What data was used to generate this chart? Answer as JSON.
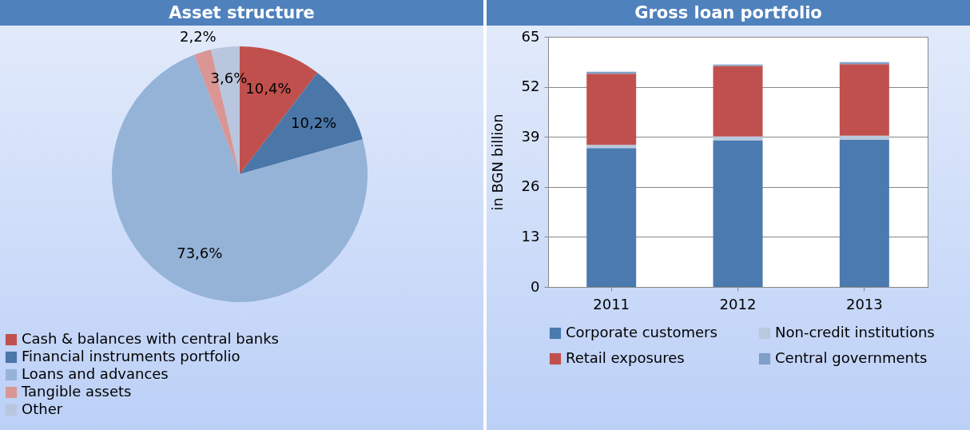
{
  "chart_data": [
    {
      "type": "pie",
      "title": "Asset structure",
      "categories": [
        "Cash & balances with central banks",
        "Financial instruments portfolio",
        "Loans and advances",
        "Tangible assets",
        "Other"
      ],
      "values": [
        10.4,
        10.2,
        73.6,
        2.2,
        3.6
      ],
      "value_labels": [
        "10,4%",
        "10,2%",
        "73,6%",
        "2,2%",
        "3,6%"
      ],
      "colors": [
        "#c0504d",
        "#4a76a8",
        "#95b3d7",
        "#d99694",
        "#b9c6dd"
      ],
      "legend": "bottom"
    },
    {
      "type": "bar",
      "title": "Gross loan portfolio",
      "ylabel": "in BGN billion",
      "categories": [
        "2011",
        "2012",
        "2013"
      ],
      "stacked": true,
      "ylim": [
        0,
        65
      ],
      "yticks": [
        0,
        13,
        26,
        39,
        52,
        65
      ],
      "grid": "y",
      "legend": "bottom",
      "series": [
        {
          "name": "Corporate customers",
          "color": "#4a7aaf",
          "values": [
            36.1,
            38.1,
            38.2
          ]
        },
        {
          "name": "Non-credit institutions",
          "color": "#b8c8de",
          "values": [
            0.8,
            1.0,
            1.1
          ]
        },
        {
          "name": "Retail exposures",
          "color": "#c0504d",
          "values": [
            18.5,
            18.3,
            18.6
          ]
        },
        {
          "name": "Central governments",
          "color": "#7f9fc8",
          "values": [
            0.5,
            0.4,
            0.5
          ]
        }
      ]
    }
  ]
}
